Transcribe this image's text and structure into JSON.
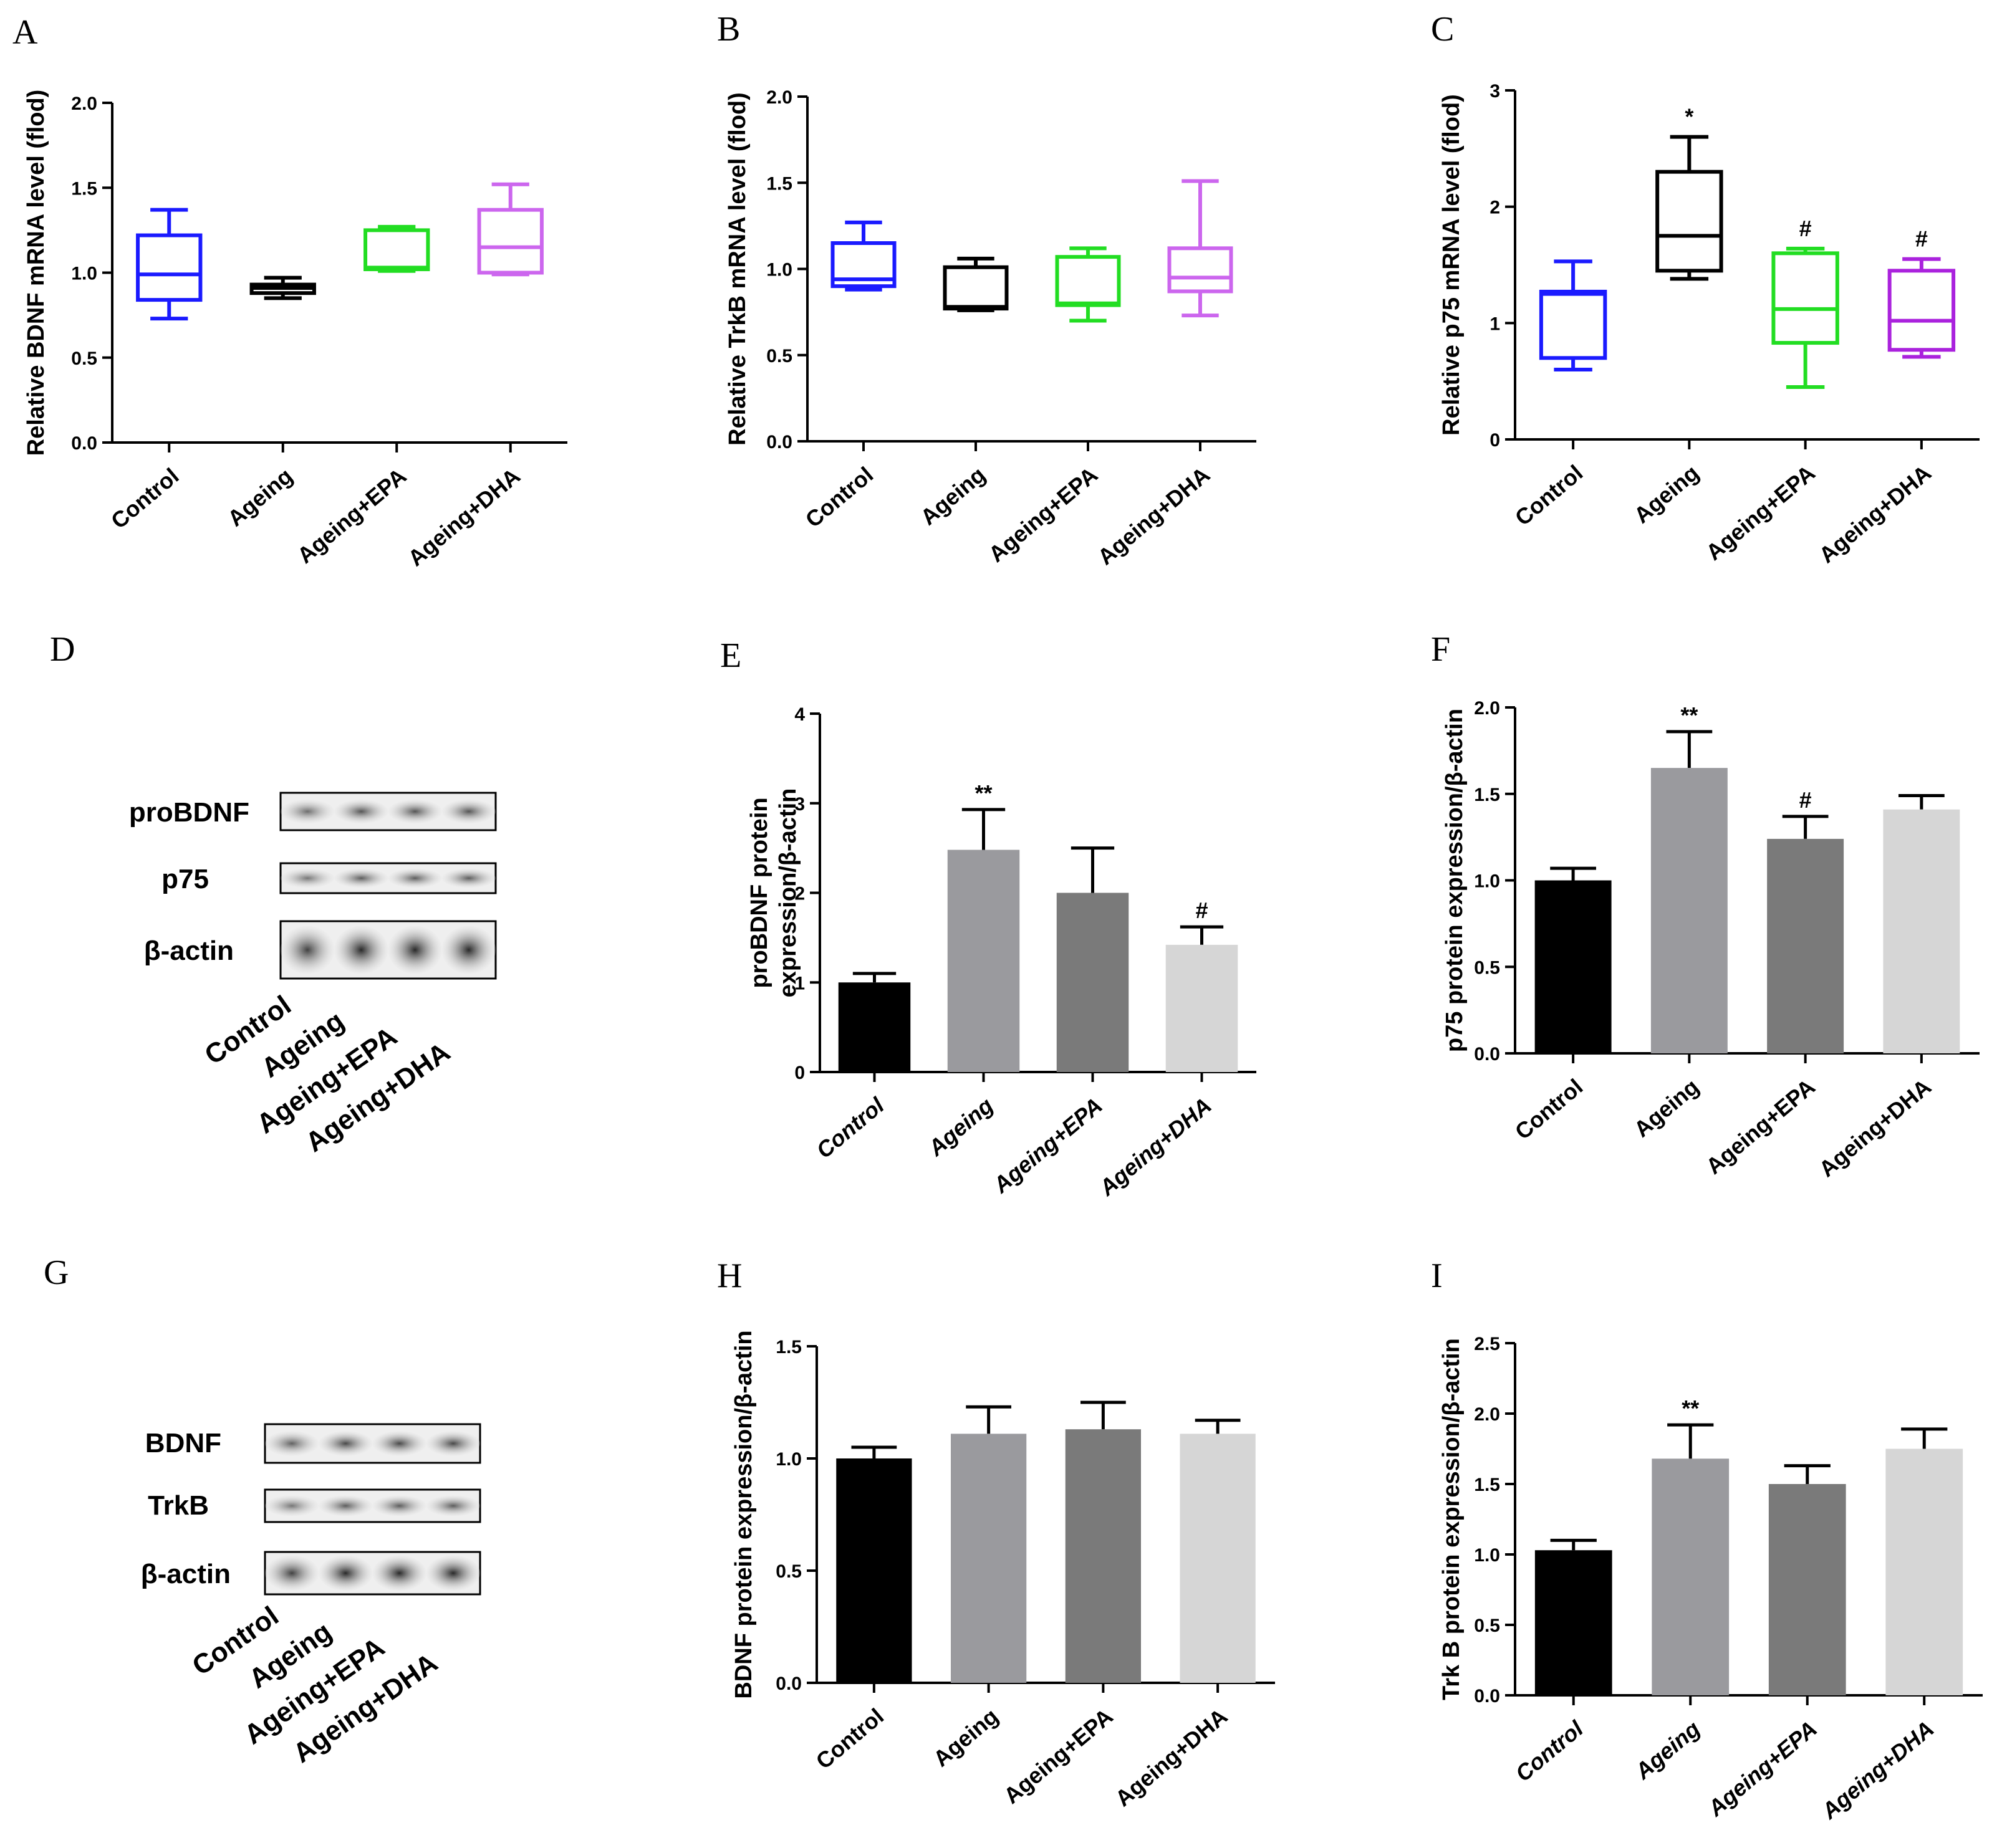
{
  "chart_data": [
    {
      "panel": "A",
      "type": "box",
      "ylabel": "Relative BDNF mRNA level (flod)",
      "yticks": [
        "0.0",
        "0.5",
        "1.0",
        "1.5",
        "2.0"
      ],
      "ylim": [
        0,
        2.0
      ],
      "categories": [
        "Control",
        "Ageing",
        "Ageing+EPA",
        "Ageing+DHA"
      ],
      "colors": [
        "#1a1aff",
        "#000000",
        "#22dd22",
        "#cc66ee"
      ],
      "boxes": [
        {
          "min": 0.73,
          "q1": 0.84,
          "median": 0.99,
          "q3": 1.22,
          "max": 1.37
        },
        {
          "min": 0.85,
          "q1": 0.88,
          "median": 0.91,
          "q3": 0.93,
          "max": 0.97
        },
        {
          "min": 1.01,
          "q1": 1.02,
          "median": 1.03,
          "q3": 1.25,
          "max": 1.27
        },
        {
          "min": 0.99,
          "q1": 1.0,
          "median": 1.15,
          "q3": 1.37,
          "max": 1.52
        }
      ],
      "annotations": [
        "",
        "",
        "",
        ""
      ]
    },
    {
      "panel": "B",
      "type": "box",
      "ylabel": "Relative TrkB mRNA level (flod)",
      "yticks": [
        "0.0",
        "0.5",
        "1.0",
        "1.5",
        "2.0"
      ],
      "ylim": [
        0,
        2.0
      ],
      "categories": [
        "Control",
        "Ageing",
        "Ageing+EPA",
        "Ageing+DHA"
      ],
      "colors": [
        "#1a1aff",
        "#000000",
        "#22dd22",
        "#cc66ee"
      ],
      "boxes": [
        {
          "min": 0.88,
          "q1": 0.9,
          "median": 0.94,
          "q3": 1.15,
          "max": 1.27
        },
        {
          "min": 0.76,
          "q1": 0.77,
          "median": 0.78,
          "q3": 1.01,
          "max": 1.06
        },
        {
          "min": 0.7,
          "q1": 0.79,
          "median": 0.8,
          "q3": 1.07,
          "max": 1.12
        },
        {
          "min": 0.73,
          "q1": 0.87,
          "median": 0.95,
          "q3": 1.12,
          "max": 1.51
        }
      ],
      "annotations": [
        "",
        "",
        "",
        ""
      ]
    },
    {
      "panel": "C",
      "type": "box",
      "ylabel": "Relative p75 mRNA level (flod)",
      "yticks": [
        "0",
        "1",
        "2",
        "3"
      ],
      "ylim": [
        0,
        3
      ],
      "categories": [
        "Control",
        "Ageing",
        "Ageing+EPA",
        "Ageing+DHA"
      ],
      "colors": [
        "#1a1aff",
        "#000000",
        "#22dd22",
        "#aa22dd"
      ],
      "boxes": [
        {
          "min": 0.6,
          "q1": 0.7,
          "median": 1.25,
          "q3": 1.27,
          "max": 1.53
        },
        {
          "min": 1.38,
          "q1": 1.45,
          "median": 1.75,
          "q3": 2.3,
          "max": 2.6
        },
        {
          "min": 0.45,
          "q1": 0.83,
          "median": 1.12,
          "q3": 1.6,
          "max": 1.64
        },
        {
          "min": 0.71,
          "q1": 0.77,
          "median": 1.02,
          "q3": 1.45,
          "max": 1.55
        }
      ],
      "annotations": [
        "",
        "*",
        "#",
        "#"
      ]
    },
    {
      "panel": "E",
      "type": "bar",
      "ylabel": [
        "proBDNF protein",
        "expression/β-actin"
      ],
      "yticks": [
        "0",
        "1",
        "2",
        "3",
        "4"
      ],
      "ylim": [
        0,
        4
      ],
      "categories": [
        "Control",
        "Ageing",
        "Ageing+EPA",
        "Ageing+DHA"
      ],
      "italic_categories": true,
      "colors": [
        "#000000",
        "#9a9a9e",
        "#7a7a7a",
        "#d6d6d6"
      ],
      "values": [
        1.0,
        2.48,
        2.0,
        1.42
      ],
      "errors": [
        0.1,
        0.45,
        0.5,
        0.2
      ],
      "annotations": [
        "",
        "**",
        "",
        "#"
      ]
    },
    {
      "panel": "F",
      "type": "bar",
      "ylabel": "p75 protein expression/β-actin",
      "yticks": [
        "0.0",
        "0.5",
        "1.0",
        "1.5",
        "2.0"
      ],
      "ylim": [
        0,
        2.0
      ],
      "categories": [
        "Control",
        "Ageing",
        "Ageing+EPA",
        "Ageing+DHA"
      ],
      "colors": [
        "#000000",
        "#9a9a9e",
        "#7a7a7a",
        "#d6d6d6"
      ],
      "values": [
        1.0,
        1.65,
        1.24,
        1.41
      ],
      "errors": [
        0.07,
        0.21,
        0.13,
        0.08
      ],
      "annotations": [
        "",
        "**",
        "#",
        ""
      ]
    },
    {
      "panel": "H",
      "type": "bar",
      "ylabel": "BDNF protein expression/β-actin",
      "yticks": [
        "0.0",
        "0.5",
        "1.0",
        "1.5"
      ],
      "ylim": [
        0,
        1.5
      ],
      "categories": [
        "Control",
        "Ageing",
        "Ageing+EPA",
        "Ageing+DHA"
      ],
      "colors": [
        "#000000",
        "#9a9a9e",
        "#7a7a7a",
        "#d6d6d6"
      ],
      "values": [
        1.0,
        1.11,
        1.13,
        1.11
      ],
      "errors": [
        0.05,
        0.12,
        0.12,
        0.06
      ],
      "annotations": [
        "",
        "",
        "",
        ""
      ]
    },
    {
      "panel": "I",
      "type": "bar",
      "ylabel": "Trk B protein expression/β-actin",
      "yticks": [
        "0.0",
        "0.5",
        "1.0",
        "1.5",
        "2.0",
        "2.5"
      ],
      "ylim": [
        0,
        2.5
      ],
      "categories": [
        "Control",
        "Ageing",
        "Ageing+EPA",
        "Ageing+DHA"
      ],
      "italic_categories": true,
      "colors": [
        "#000000",
        "#9a9a9e",
        "#7a7a7a",
        "#d6d6d6"
      ],
      "values": [
        1.03,
        1.68,
        1.5,
        1.75
      ],
      "errors": [
        0.07,
        0.24,
        0.13,
        0.14
      ],
      "annotations": [
        "",
        "**",
        "",
        ""
      ]
    }
  ],
  "blots": [
    {
      "panel": "D",
      "rows": [
        "proBDNF",
        "p75",
        "β-actin"
      ],
      "lanes": [
        "Control",
        "Ageing",
        "Ageing+EPA",
        "Ageing+DHA"
      ]
    },
    {
      "panel": "G",
      "rows": [
        "BDNF",
        "TrkB",
        "β-actin"
      ],
      "lanes": [
        "Control",
        "Ageing",
        "Ageing+EPA",
        "Ageing+DHA"
      ]
    }
  ]
}
